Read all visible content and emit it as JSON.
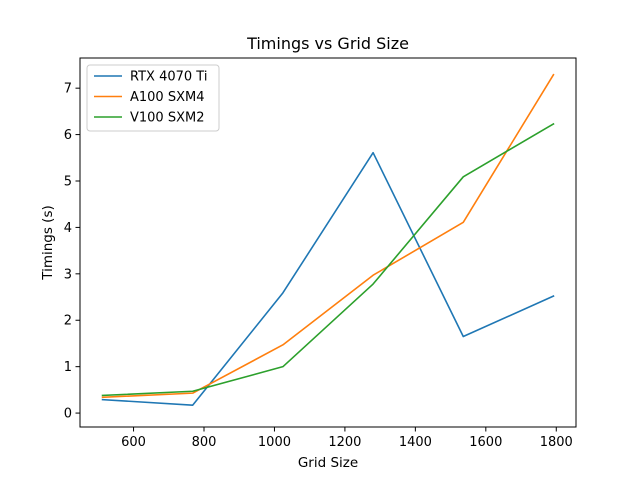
{
  "chart_data": {
    "type": "line",
    "title": "Timings vs Grid Size",
    "xlabel": "Grid Size",
    "ylabel": "Timings (s)",
    "x": [
      512,
      768,
      1024,
      1280,
      1536,
      1792
    ],
    "xlim": [
      448,
      1856
    ],
    "ylim": [
      -0.3,
      7.65
    ],
    "xticks": [
      600,
      800,
      1000,
      1200,
      1400,
      1600,
      1800
    ],
    "yticks": [
      0,
      1,
      2,
      3,
      4,
      5,
      6,
      7
    ],
    "grid": false,
    "legend_position": "top-left",
    "series": [
      {
        "name": "RTX 4070 Ti",
        "color": "#1f77b4",
        "values": [
          0.29,
          0.17,
          2.59,
          5.61,
          1.65,
          2.52
        ]
      },
      {
        "name": "A100 SXM4",
        "color": "#ff7f0e",
        "values": [
          0.34,
          0.43,
          1.47,
          2.97,
          4.11,
          7.29
        ]
      },
      {
        "name": "V100 SXM2",
        "color": "#2ca02c",
        "values": [
          0.38,
          0.47,
          1.0,
          2.78,
          5.09,
          6.23
        ]
      }
    ]
  }
}
